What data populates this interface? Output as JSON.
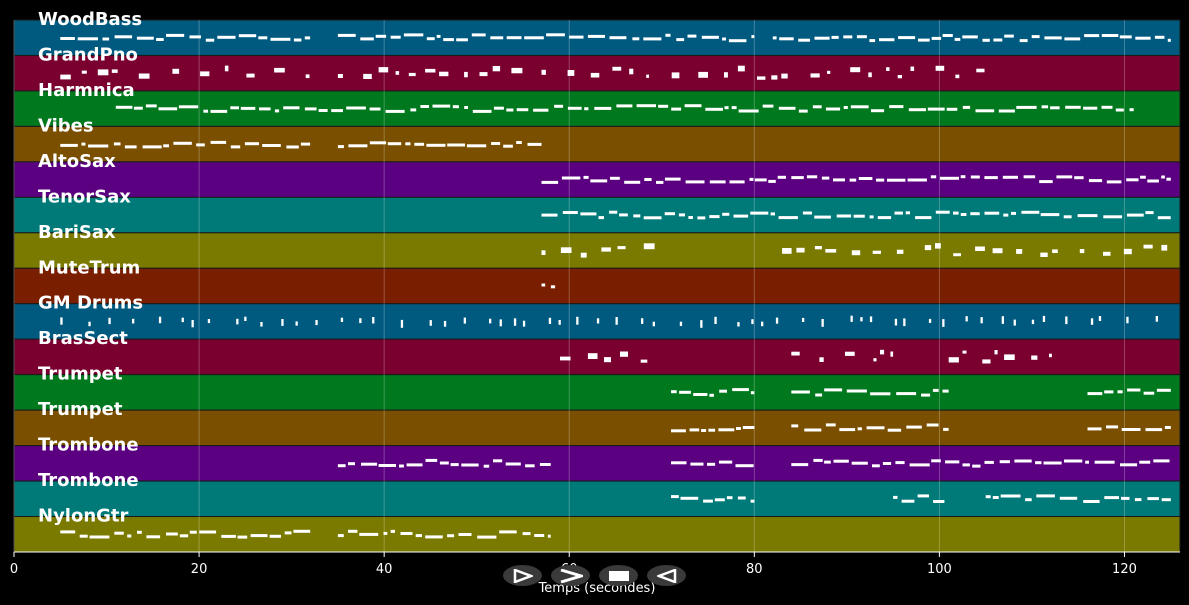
{
  "chart_data": {
    "type": "piano-roll",
    "xlabel": "Temps (secondes)",
    "xlim": [
      0,
      126
    ],
    "x_ticks": [
      0,
      20,
      40,
      60,
      80,
      100,
      120
    ],
    "grid": true,
    "tracks": [
      {
        "name": "WoodBass",
        "color": "#005a80",
        "segments": [
          [
            5,
            32
          ],
          [
            35,
            80
          ],
          [
            82,
            125
          ]
        ],
        "style": "dense"
      },
      {
        "name": "GrandPno",
        "color": "#7a0030",
        "segments": [
          [
            5,
            32
          ],
          [
            35,
            106
          ]
        ],
        "style": "sparse"
      },
      {
        "name": "Harmnica",
        "color": "#00781e",
        "segments": [
          [
            11,
            121
          ]
        ],
        "style": "dense"
      },
      {
        "name": "Vibes",
        "color": "#7a5000",
        "segments": [
          [
            5,
            32
          ],
          [
            35,
            57
          ]
        ],
        "style": "dense"
      },
      {
        "name": "AltoSax",
        "color": "#5a0080",
        "segments": [
          [
            57,
            125
          ]
        ],
        "style": "dense"
      },
      {
        "name": "TenorSax",
        "color": "#007a78",
        "segments": [
          [
            57,
            125
          ]
        ],
        "style": "dense"
      },
      {
        "name": "BariSax",
        "color": "#7a7a00",
        "segments": [
          [
            57,
            70
          ],
          [
            83,
            125
          ]
        ],
        "style": "sparse"
      },
      {
        "name": "MuteTrum",
        "color": "#7a1e00",
        "segments": [
          [
            57,
            59
          ]
        ],
        "style": "dense"
      },
      {
        "name": "GM Drums",
        "color": "#005a80",
        "segments": [
          [
            5,
            125
          ]
        ],
        "style": "ticks"
      },
      {
        "name": "BrasSect",
        "color": "#7a0030",
        "segments": [
          [
            59,
            70
          ],
          [
            84,
            95
          ],
          [
            101,
            113
          ]
        ],
        "style": "sparse"
      },
      {
        "name": "Trumpet",
        "color": "#00781e",
        "segments": [
          [
            71,
            80
          ],
          [
            84,
            101
          ],
          [
            116,
            125
          ]
        ],
        "style": "dense"
      },
      {
        "name": "Trumpet",
        "color": "#7a5000",
        "segments": [
          [
            71,
            80
          ],
          [
            84,
            101
          ],
          [
            116,
            125
          ]
        ],
        "style": "dense"
      },
      {
        "name": "Trombone",
        "color": "#5a0080",
        "segments": [
          [
            35,
            58
          ],
          [
            71,
            80
          ],
          [
            84,
            125
          ]
        ],
        "style": "dense"
      },
      {
        "name": "Trombone",
        "color": "#007a78",
        "segments": [
          [
            71,
            80
          ],
          [
            95,
            101
          ],
          [
            105,
            125
          ]
        ],
        "style": "dense"
      },
      {
        "name": "NylonGtr",
        "color": "#7a7a00",
        "segments": [
          [
            5,
            32
          ],
          [
            35,
            58
          ]
        ],
        "style": "dense"
      }
    ]
  },
  "transport": {
    "icons": [
      "play-icon",
      "next-icon",
      "stop-icon",
      "back-icon"
    ]
  }
}
